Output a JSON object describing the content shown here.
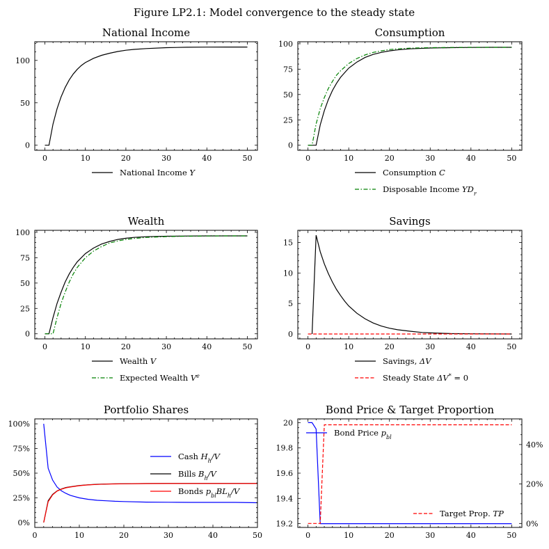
{
  "figure_title": "Figure LP2.1: Model convergence to the steady state",
  "chart_data": [
    {
      "id": "income",
      "type": "line",
      "title": "National Income",
      "xlim": [
        -2.5,
        52.5
      ],
      "ylim": [
        -6,
        122
      ],
      "xticks": [
        0,
        10,
        20,
        30,
        40,
        50
      ],
      "yticks": [
        0,
        50,
        100
      ],
      "legend_placement": "below",
      "series": [
        {
          "name": "National Income Y",
          "color": "#000000",
          "dash": "solid",
          "x": [
            0,
            1,
            2,
            3,
            4,
            5,
            6,
            7,
            8,
            9,
            10,
            12,
            14,
            16,
            18,
            20,
            22,
            25,
            30,
            35,
            40,
            45,
            50
          ],
          "y": [
            0,
            0,
            25,
            43,
            57,
            68,
            77,
            84,
            89.5,
            94,
            97.5,
            102.5,
            106,
            108.5,
            110.5,
            112,
            113,
            114,
            115,
            115.5,
            115.7,
            115.8,
            115.8
          ]
        }
      ]
    },
    {
      "id": "consumption",
      "type": "line",
      "title": "Consumption",
      "xlim": [
        -2.5,
        52.5
      ],
      "ylim": [
        -5,
        102
      ],
      "xticks": [
        0,
        10,
        20,
        30,
        40,
        50
      ],
      "yticks": [
        0,
        25,
        50,
        75,
        100
      ],
      "legend_placement": "below",
      "series": [
        {
          "name": "Consumption C",
          "color": "#000000",
          "dash": "solid",
          "x": [
            0,
            1,
            2,
            3,
            4,
            5,
            6,
            7,
            8,
            10,
            12,
            14,
            16,
            18,
            20,
            22,
            25,
            30,
            35,
            40,
            45,
            50
          ],
          "y": [
            0,
            0,
            0,
            20,
            34,
            45,
            54,
            61,
            67,
            76,
            82,
            86.5,
            89.5,
            91.5,
            93,
            94,
            95,
            95.8,
            96.2,
            96.4,
            96.5,
            96.5
          ]
        },
        {
          "name": "Disposable Income YDr",
          "color": "#008000",
          "dash": "dashdot",
          "x": [
            0,
            1,
            2,
            3,
            4,
            5,
            6,
            7,
            8,
            10,
            12,
            14,
            16,
            18,
            20,
            22,
            25,
            30,
            35,
            40,
            45,
            50
          ],
          "y": [
            0,
            0,
            21,
            36,
            47,
            56,
            63,
            69,
            73.5,
            80.5,
            85.5,
            89,
            91.5,
            93,
            94.3,
            95,
            95.7,
            96.2,
            96.4,
            96.5,
            96.5,
            96.5
          ]
        }
      ]
    },
    {
      "id": "wealth",
      "type": "line",
      "title": "Wealth",
      "xlim": [
        -2.5,
        52.5
      ],
      "ylim": [
        -5,
        102
      ],
      "xticks": [
        0,
        10,
        20,
        30,
        40,
        50
      ],
      "yticks": [
        0,
        25,
        50,
        75,
        100
      ],
      "legend_placement": "below",
      "series": [
        {
          "name": "Wealth V",
          "color": "#000000",
          "dash": "solid",
          "x": [
            0,
            1,
            2,
            3,
            4,
            5,
            6,
            7,
            8,
            10,
            12,
            14,
            16,
            18,
            20,
            22,
            25,
            30,
            35,
            40,
            45,
            50
          ],
          "y": [
            0,
            0,
            16,
            30,
            41,
            51,
            59,
            65.5,
            71,
            79,
            84.5,
            88.5,
            91,
            93,
            94.2,
            95,
            95.7,
            96.2,
            96.4,
            96.5,
            96.5,
            96.5
          ]
        },
        {
          "name": "Expected Wealth Ve",
          "color": "#008000",
          "dash": "dashdot",
          "x": [
            0,
            1,
            2,
            3,
            4,
            5,
            6,
            7,
            8,
            10,
            12,
            14,
            16,
            18,
            20,
            22,
            25,
            30,
            35,
            40,
            45,
            50
          ],
          "y": [
            0,
            0,
            0,
            16,
            30,
            41,
            51,
            59,
            65.5,
            75,
            81.5,
            86,
            89.5,
            91.5,
            93,
            94,
            95,
            95.8,
            96.2,
            96.4,
            96.5,
            96.5
          ]
        }
      ]
    },
    {
      "id": "savings",
      "type": "line",
      "title": "Savings",
      "xlim": [
        -2.5,
        52.5
      ],
      "ylim": [
        -0.8,
        17
      ],
      "xticks": [
        0,
        10,
        20,
        30,
        40,
        50
      ],
      "yticks": [
        0,
        5,
        10,
        15
      ],
      "legend_placement": "below",
      "series": [
        {
          "name": "Savings, ΔV",
          "color": "#000000",
          "dash": "solid",
          "x": [
            1,
            2,
            3,
            4,
            5,
            6,
            7,
            8,
            9,
            10,
            12,
            14,
            16,
            18,
            20,
            22,
            25,
            28,
            30,
            35,
            40,
            45,
            50
          ],
          "y": [
            0,
            16.2,
            13.5,
            11.5,
            9.9,
            8.5,
            7.3,
            6.3,
            5.4,
            4.6,
            3.4,
            2.5,
            1.8,
            1.3,
            0.95,
            0.7,
            0.45,
            0.25,
            0.18,
            0.07,
            0.03,
            0.01,
            0.0
          ]
        },
        {
          "name": "Steady State ΔV* = 0",
          "color": "#ff0000",
          "dash": "dashed",
          "x": [
            0,
            50
          ],
          "y": [
            0,
            0
          ]
        }
      ]
    },
    {
      "id": "portfolio",
      "type": "line",
      "title": "Portfolio Shares",
      "xlim": [
        0,
        50
      ],
      "ylim": [
        -0.05,
        1.05
      ],
      "xticks": [
        0,
        10,
        20,
        30,
        40,
        50
      ],
      "yticks": [
        0,
        0.25,
        0.5,
        0.75,
        1.0
      ],
      "ytick_labels": [
        "0%",
        "25%",
        "50%",
        "75%",
        "100%"
      ],
      "legend_placement": "center-right",
      "series": [
        {
          "name": "Cash Hh/V",
          "color": "#0000ff",
          "dash": "solid",
          "x": [
            2,
            3,
            4,
            5,
            6,
            7,
            8,
            10,
            12,
            14,
            16,
            18,
            20,
            25,
            30,
            35,
            40,
            45,
            50
          ],
          "y": [
            1.0,
            0.55,
            0.43,
            0.36,
            0.32,
            0.295,
            0.275,
            0.25,
            0.235,
            0.225,
            0.22,
            0.215,
            0.212,
            0.207,
            0.205,
            0.204,
            0.204,
            0.204,
            0.2
          ]
        },
        {
          "name": "Bills Bh/V",
          "color": "#000000",
          "dash": "solid",
          "x": [
            2,
            3,
            4,
            5,
            6,
            7,
            8,
            10,
            12,
            14,
            16,
            18,
            20,
            25,
            30,
            35,
            40,
            45,
            50
          ],
          "y": [
            0.0,
            0.22,
            0.285,
            0.32,
            0.34,
            0.355,
            0.362,
            0.375,
            0.382,
            0.387,
            0.39,
            0.392,
            0.393,
            0.395,
            0.396,
            0.396,
            0.396,
            0.396,
            0.396
          ]
        },
        {
          "name": "Bonds pbl BLh/V",
          "color": "#ff0000",
          "dash": "solid",
          "x": [
            2,
            3,
            4,
            5,
            6,
            7,
            8,
            10,
            12,
            14,
            16,
            18,
            20,
            25,
            30,
            35,
            40,
            45,
            50
          ],
          "y": [
            0.0,
            0.21,
            0.28,
            0.318,
            0.338,
            0.352,
            0.36,
            0.373,
            0.381,
            0.386,
            0.389,
            0.391,
            0.392,
            0.394,
            0.395,
            0.395,
            0.395,
            0.395,
            0.395
          ]
        }
      ]
    },
    {
      "id": "bond",
      "type": "line",
      "title": "Bond Price & Target Proportion",
      "xlim": [
        -2.5,
        52.5
      ],
      "ylim": [
        19.17,
        20.03
      ],
      "xticks": [
        0,
        10,
        20,
        30,
        40,
        50
      ],
      "yticks": [
        19.2,
        19.4,
        19.6,
        19.8,
        20.0
      ],
      "y2lim": [
        -0.02,
        0.53
      ],
      "y2ticks": [
        0,
        0.2,
        0.4
      ],
      "y2tick_labels": [
        "0%",
        "20%",
        "40%"
      ],
      "legend_placement": "top-left / bottom-right",
      "series": [
        {
          "name": "Bond Price pbl",
          "color": "#0000ff",
          "dash": "solid",
          "axis": "left",
          "x": [
            0,
            1,
            2,
            3,
            4,
            10,
            20,
            30,
            40,
            50
          ],
          "y": [
            20.0,
            20.0,
            19.95,
            19.2,
            19.2,
            19.2,
            19.2,
            19.2,
            19.2,
            19.2
          ]
        },
        {
          "name": "Target Prop. TP",
          "color": "#ff0000",
          "dash": "dashed",
          "axis": "right",
          "x": [
            0,
            1,
            2,
            3,
            4,
            10,
            20,
            30,
            40,
            50
          ],
          "y": [
            0.0,
            0.0,
            0.0,
            0.0,
            0.5,
            0.5,
            0.5,
            0.5,
            0.5,
            0.5
          ]
        }
      ]
    }
  ]
}
